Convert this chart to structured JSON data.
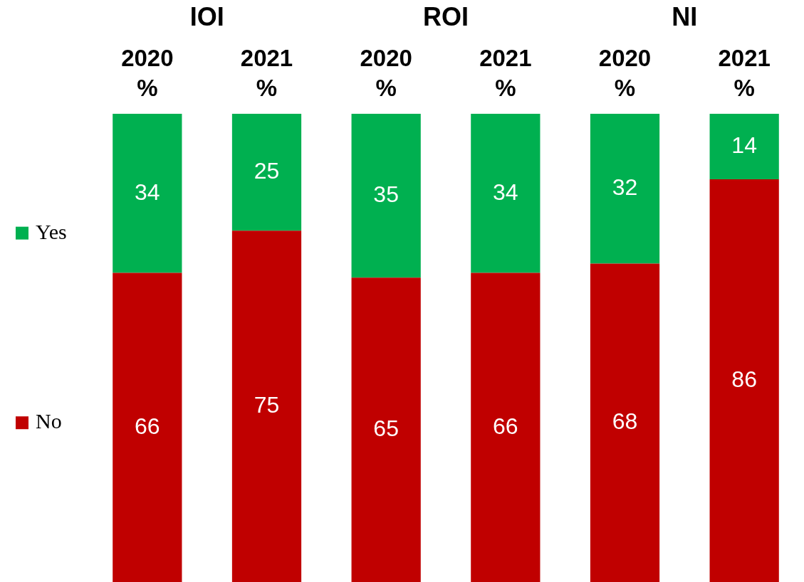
{
  "chart_data": {
    "type": "bar",
    "stacked": true,
    "categories": [
      "2020\n%",
      "2021\n%",
      "2020\n%",
      "2021\n%",
      "2020\n%",
      "2021\n%"
    ],
    "series": [
      {
        "name": "No",
        "color": "#c00000",
        "values": [
          66,
          75,
          65,
          66,
          68,
          86
        ]
      },
      {
        "name": "Yes",
        "color": "#00b050",
        "values": [
          34,
          25,
          35,
          34,
          32,
          14
        ]
      }
    ],
    "annotations": [
      "IOI",
      "ROI",
      "NI"
    ],
    "ylim": [
      0,
      100
    ],
    "tick_labels": "x",
    "data_labels": true,
    "legend": "left",
    "grid": false
  }
}
